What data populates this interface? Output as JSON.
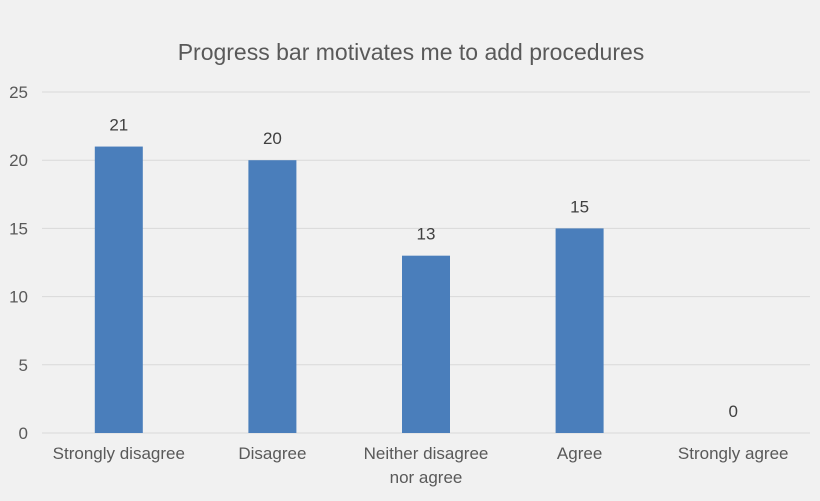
{
  "chart_data": {
    "type": "bar",
    "title": "Progress bar motivates me to add procedures",
    "categories": [
      [
        "Strongly disagree"
      ],
      [
        "Disagree"
      ],
      [
        "Neither disagree",
        "nor agree"
      ],
      [
        "Agree"
      ],
      [
        "Strongly agree"
      ]
    ],
    "values": [
      21,
      20,
      13,
      15,
      0
    ],
    "ylim": [
      0,
      25
    ],
    "yticks": [
      0,
      5,
      10,
      15,
      20,
      25
    ],
    "grid": true,
    "legend": "none",
    "bar_color": "#4a7ebb",
    "data_labels": true
  }
}
